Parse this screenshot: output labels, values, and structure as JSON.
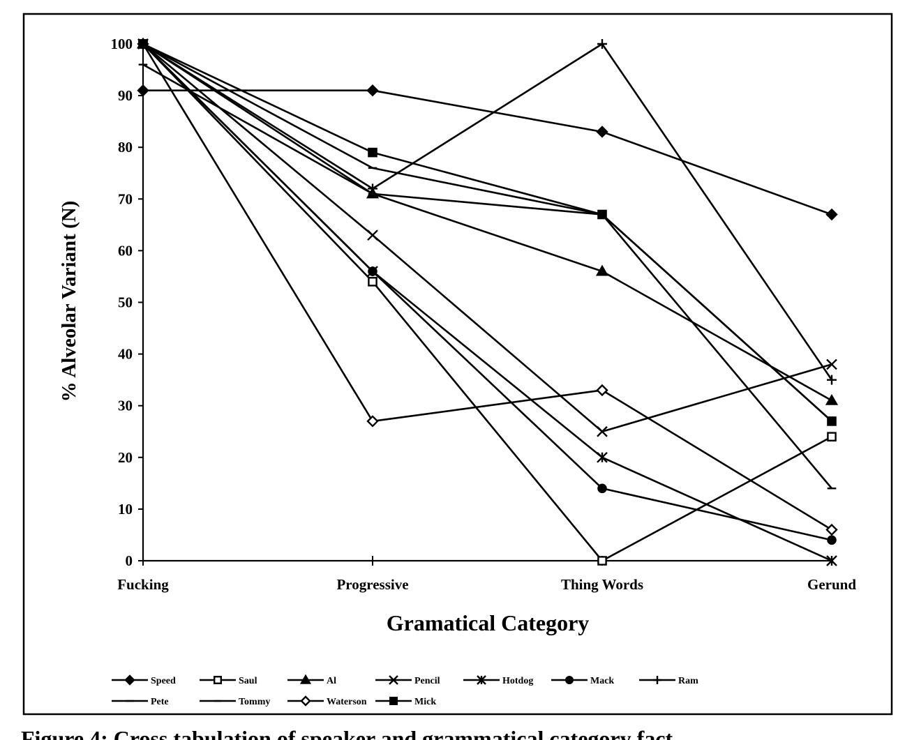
{
  "chart_data": {
    "type": "line",
    "xlabel": "Gramatical Category",
    "ylabel": "% Alveolar Variant (N)",
    "categories": [
      "Fucking",
      "Progressive",
      "Thing Words",
      "Gerund"
    ],
    "ylim": [
      0,
      100
    ],
    "yticks": [
      0,
      10,
      20,
      30,
      40,
      50,
      60,
      70,
      80,
      90,
      100
    ],
    "grid": false,
    "legend_position": "bottom",
    "series": [
      {
        "name": "Speed",
        "marker": "diamond-filled",
        "values": [
          91,
          91,
          83,
          67
        ]
      },
      {
        "name": "Saul",
        "marker": "square-open",
        "values": [
          100,
          54,
          0,
          24
        ]
      },
      {
        "name": "Al",
        "marker": "triangle-filled",
        "values": [
          100,
          71,
          56,
          31
        ]
      },
      {
        "name": "Pencil",
        "marker": "x",
        "values": [
          100,
          63,
          25,
          38
        ]
      },
      {
        "name": "Hotdog",
        "marker": "star",
        "values": [
          100,
          56,
          20,
          0
        ]
      },
      {
        "name": "Mack",
        "marker": "circle-filled",
        "values": [
          100,
          56,
          14,
          4
        ]
      },
      {
        "name": "Ram",
        "marker": "plus",
        "values": [
          100,
          72,
          100,
          35
        ]
      },
      {
        "name": "Pete",
        "marker": "dash",
        "values": [
          96,
          71,
          67,
          14
        ]
      },
      {
        "name": "Tommy",
        "marker": "dash",
        "values": [
          100,
          76,
          67,
          27
        ]
      },
      {
        "name": "Waterson",
        "marker": "diamond-open",
        "values": [
          100,
          27,
          33,
          6
        ]
      },
      {
        "name": "Mick",
        "marker": "square-filled",
        "values": [
          100,
          79,
          67,
          27
        ]
      }
    ]
  },
  "caption": "Figure 4: Cross tabulation of speaker and grammatical category fact"
}
